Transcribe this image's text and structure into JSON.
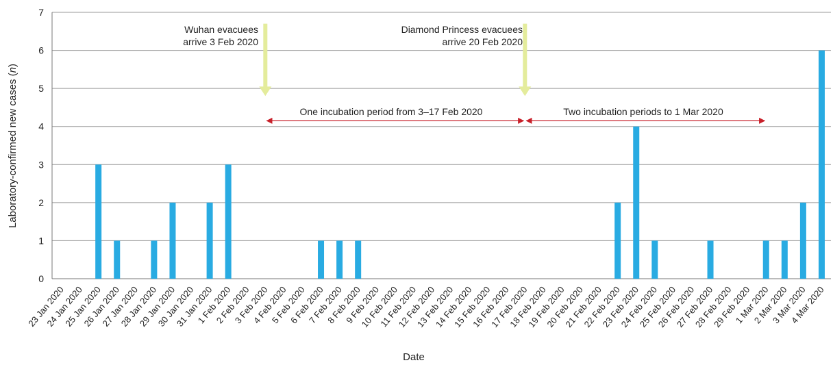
{
  "chart_data": {
    "type": "bar",
    "xlabel": "Date",
    "ylabel": "Laboratory-confirmed new cases (n)",
    "ylim": [
      0,
      7
    ],
    "yticks": [
      0,
      1,
      2,
      3,
      4,
      5,
      6,
      7
    ],
    "grid": "horizontal",
    "colors": {
      "bar": "#29abe2",
      "arrow": "#e4ec9c",
      "period": "#c8202a",
      "grid": "#999999"
    },
    "categories": [
      "23 Jan 2020",
      "24 Jan 2020",
      "25 Jan 2020",
      "26 Jan 2020",
      "27 Jan 2020",
      "28 Jan 2020",
      "29 Jan 2020",
      "30 Jan 2020",
      "31 Jan 2020",
      "1 Feb 2020",
      "2 Feb 2020",
      "3 Feb 2020",
      "4 Feb 2020",
      "5 Feb 2020",
      "6 Feb 2020",
      "7 Feb 2020",
      "8 Feb 2020",
      "9 Feb 2020",
      "10 Feb 2020",
      "11 Feb 2020",
      "12 Feb 2020",
      "13 Feb 2020",
      "14 Feb 2020",
      "15 Feb 2020",
      "16 Feb 2020",
      "17 Feb 2020",
      "18 Feb 2020",
      "19 Feb 2020",
      "20 Feb 2020",
      "21 Feb 2020",
      "22 Feb 2020",
      "23 Feb 2020",
      "24 Feb 2020",
      "25 Feb 2020",
      "26 Feb 2020",
      "27 Feb 2020",
      "28 Feb 2020",
      "29 Feb 2020",
      "1 Mar 2020",
      "2 Mar 2020",
      "3 Mar 2020",
      "4 Mar 2020"
    ],
    "values": [
      0,
      0,
      3,
      1,
      0,
      1,
      2,
      0,
      2,
      3,
      0,
      0,
      0,
      0,
      1,
      1,
      1,
      0,
      0,
      0,
      0,
      0,
      0,
      0,
      0,
      0,
      0,
      0,
      0,
      0,
      2,
      4,
      1,
      0,
      0,
      1,
      0,
      0,
      1,
      1,
      2,
      6
    ],
    "annotations": {
      "arrow1": {
        "line1": "Wuhan evacuees",
        "line2": "arrive 3 Feb 2020",
        "x": "3 Feb 2020"
      },
      "arrow2": {
        "line1": "Diamond Princess evacuees",
        "line2": "arrive 20 Feb 2020",
        "x": "17 Feb 2020"
      },
      "period1": {
        "label": "One incubation period from 3–17 Feb 2020",
        "from": "3 Feb 2020",
        "to": "17 Feb 2020"
      },
      "period2": {
        "label": "Two incubation periods to 1 Mar 2020",
        "from": "17 Feb 2020",
        "to": "1 Mar 2020"
      }
    }
  }
}
